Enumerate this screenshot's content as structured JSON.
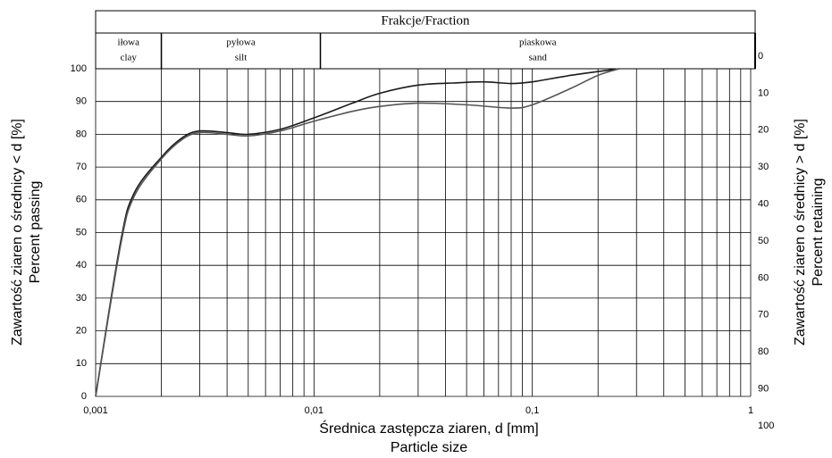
{
  "chart_data": {
    "type": "line",
    "header_title": "Frakcje/Fraction",
    "fractions": [
      {
        "name": "iłowa",
        "name_en": "clay",
        "from": 0.001,
        "to": 0.002
      },
      {
        "name": "pyłowa",
        "name_en": "silt",
        "from": 0.002,
        "to": 0.0107
      },
      {
        "name": "piaskowa",
        "name_en": "sand",
        "from": 0.0107,
        "to": 1
      }
    ],
    "x_label": "Średnica zastępcza ziaren, d [mm]",
    "x_label_en": "Particle size",
    "y_label": "Zawartość ziaren o średnicy < d [%]",
    "y_label_en": "Percent passing",
    "y2_label": "Zawartość ziaren o średnicy > d [%]",
    "y2_label_en": "Percent retaining",
    "x_log": true,
    "xlim": [
      0.001,
      1
    ],
    "xticks": [
      {
        "value": 0.001,
        "label": "0,001"
      },
      {
        "value": 0.01,
        "label": "0,01"
      },
      {
        "value": 0.1,
        "label": "0,1"
      },
      1
    ],
    "xminor": [
      0.002,
      0.003,
      0.004,
      0.005,
      0.006,
      0.007,
      0.008,
      0.009,
      0.02,
      0.03,
      0.04,
      0.05,
      0.06,
      0.07,
      0.08,
      0.09,
      0.2,
      0.3,
      0.4,
      0.5,
      0.6,
      0.7,
      0.8,
      0.9
    ],
    "ylim": [
      0,
      100
    ],
    "yticks": [
      0,
      10,
      20,
      30,
      40,
      50,
      60,
      70,
      80,
      90,
      100
    ],
    "y2lim": [
      100,
      0
    ],
    "y2ticks": [
      0,
      10,
      20,
      30,
      40,
      50,
      60,
      70,
      80,
      90,
      100
    ],
    "grid": true,
    "series": [
      {
        "color": "#1a1a1a",
        "x": [
          0.001,
          0.0013,
          0.0015,
          0.002,
          0.0025,
          0.003,
          0.004,
          0.005,
          0.007,
          0.01,
          0.015,
          0.02,
          0.03,
          0.045,
          0.06,
          0.08,
          0.1,
          0.15,
          0.25
        ],
        "values": [
          0,
          47,
          62,
          73,
          79,
          81,
          80.5,
          80,
          81.5,
          85,
          89.5,
          92.5,
          95,
          95.7,
          96,
          95.5,
          96,
          98,
          100
        ]
      },
      {
        "color": "#555555",
        "x": [
          0.001,
          0.0013,
          0.0015,
          0.002,
          0.0025,
          0.003,
          0.004,
          0.005,
          0.007,
          0.01,
          0.015,
          0.02,
          0.03,
          0.05,
          0.08,
          0.1,
          0.15,
          0.2,
          0.25
        ],
        "values": [
          0,
          46,
          61,
          72.5,
          78.5,
          80.5,
          80,
          79.5,
          81,
          84,
          87,
          88.5,
          89.5,
          89,
          88,
          89,
          94,
          98,
          100
        ]
      }
    ]
  }
}
